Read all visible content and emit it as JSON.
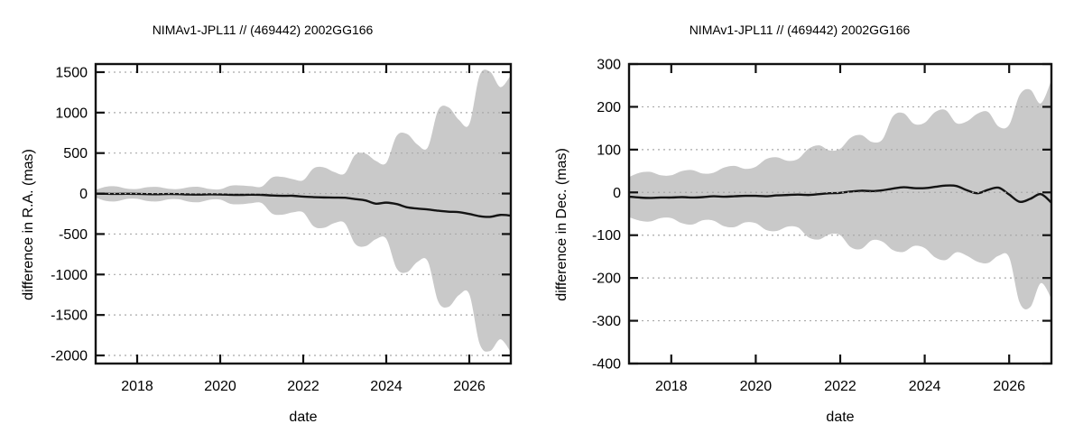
{
  "page": {
    "background_color": "#ffffff",
    "text_color": "#000000",
    "band_color": "#c9c9c9",
    "grid_color": "#a9a9a9",
    "frame_color": "#111111",
    "line_color": "#141414"
  },
  "chart_data": [
    {
      "type": "area",
      "title": "NIMAv1-JPL11 // (469442) 2002GG166",
      "xlabel": "date",
      "ylabel": "difference in R.A. (mas)",
      "x_range": [
        2017,
        2027
      ],
      "y_range": [
        -2100,
        1600
      ],
      "x_ticks": [
        2018,
        2020,
        2022,
        2024,
        2026
      ],
      "x_tick_labels": [
        "2018",
        "2020",
        "2022",
        "2024",
        "2026"
      ],
      "y_ticks": [
        -2000,
        -1500,
        -1000,
        -500,
        0,
        500,
        1000,
        1500
      ],
      "y_tick_labels": [
        "-2000",
        "-1500",
        "-1000",
        "-500",
        "0",
        "500",
        "1000",
        "1500"
      ],
      "grid": "horizontal-dotted",
      "legend": "none",
      "x": [
        2017.0,
        2017.25,
        2017.5,
        2017.75,
        2018.0,
        2018.25,
        2018.5,
        2018.75,
        2019.0,
        2019.25,
        2019.5,
        2019.75,
        2020.0,
        2020.25,
        2020.5,
        2020.75,
        2021.0,
        2021.25,
        2021.5,
        2021.75,
        2022.0,
        2022.25,
        2022.5,
        2022.75,
        2023.0,
        2023.25,
        2023.5,
        2023.75,
        2024.0,
        2024.25,
        2024.5,
        2024.75,
        2025.0,
        2025.25,
        2025.5,
        2025.75,
        2026.0,
        2026.25,
        2026.5,
        2026.75,
        2027.0
      ],
      "series": [
        {
          "name": "mean difference",
          "role": "line",
          "values": [
            -1,
            -3,
            -4,
            -3,
            -4,
            -7,
            -8,
            -6,
            -7,
            -11,
            -12,
            -10,
            -11,
            -15,
            -16,
            -14,
            -16,
            -24,
            -28,
            -27,
            -38,
            -44,
            -48,
            -50,
            -52,
            -68,
            -85,
            -125,
            -112,
            -130,
            -170,
            -185,
            -196,
            -212,
            -224,
            -230,
            -252,
            -280,
            -288,
            -264,
            -272
          ]
        },
        {
          "name": "uncertainty upper",
          "role": "band-upper",
          "values": [
            47,
            85,
            88,
            60,
            57,
            79,
            81,
            59,
            56,
            79,
            82,
            56,
            53,
            97,
            100,
            91,
            86,
            199,
            205,
            178,
            165,
            312,
            323,
            266,
            249,
            477,
            494,
            403,
            379,
            712,
            736,
            605,
            571,
            1029,
            1065,
            910,
            859,
            1460,
            1505,
            1315,
            1460
          ]
        },
        {
          "name": "uncertainty lower",
          "role": "band-lower",
          "values": [
            -49,
            -91,
            -96,
            -66,
            -65,
            -93,
            -97,
            -71,
            -70,
            -101,
            -106,
            -76,
            -75,
            -127,
            -132,
            -119,
            -118,
            -247,
            -261,
            -232,
            -233,
            -404,
            -423,
            -364,
            -365,
            -621,
            -650,
            -563,
            -559,
            -924,
            -972,
            -845,
            -837,
            -1333,
            -1399,
            -1254,
            -1243,
            -1857,
            -1945,
            -1800,
            -1960
          ]
        }
      ]
    },
    {
      "type": "area",
      "title": "NIMAv1-JPL11 // (469442) 2002GG166",
      "xlabel": "date",
      "ylabel": "difference in Dec. (mas)",
      "x_range": [
        2017,
        2027
      ],
      "y_range": [
        -400,
        300
      ],
      "x_ticks": [
        2018,
        2020,
        2022,
        2024,
        2026
      ],
      "x_tick_labels": [
        "2018",
        "2020",
        "2022",
        "2024",
        "2026"
      ],
      "y_ticks": [
        -400,
        -300,
        -200,
        -100,
        0,
        100,
        200,
        300
      ],
      "y_tick_labels": [
        "-400",
        "-300",
        "-200",
        "-100",
        "0",
        "100",
        "200",
        "300"
      ],
      "grid": "horizontal-dotted",
      "legend": "none",
      "x": [
        2017.0,
        2017.25,
        2017.5,
        2017.75,
        2018.0,
        2018.25,
        2018.5,
        2018.75,
        2019.0,
        2019.25,
        2019.5,
        2019.75,
        2020.0,
        2020.25,
        2020.5,
        2020.75,
        2021.0,
        2021.25,
        2021.5,
        2021.75,
        2022.0,
        2022.25,
        2022.5,
        2022.75,
        2023.0,
        2023.25,
        2023.5,
        2023.75,
        2024.0,
        2024.25,
        2024.5,
        2024.75,
        2025.0,
        2025.25,
        2025.5,
        2025.75,
        2026.0,
        2026.25,
        2026.5,
        2026.75,
        2027.0
      ],
      "series": [
        {
          "name": "mean difference",
          "role": "line",
          "values": [
            -10,
            -12,
            -13,
            -12,
            -12,
            -11,
            -12,
            -11,
            -9,
            -10,
            -9,
            -8,
            -8,
            -9,
            -7,
            -6,
            -5,
            -6,
            -4,
            -2,
            -1,
            2,
            4,
            3,
            5,
            9,
            12,
            10,
            10,
            13,
            16,
            15,
            5,
            -2,
            6,
            11,
            -5,
            -22,
            -15,
            -4,
            -24
          ]
        },
        {
          "name": "uncertainty upper",
          "role": "band-upper",
          "values": [
            36,
            46,
            48,
            40,
            40,
            50,
            52,
            44,
            46,
            58,
            62,
            55,
            60,
            78,
            82,
            74,
            78,
            102,
            110,
            98,
            102,
            128,
            134,
            118,
            124,
            178,
            185,
            160,
            163,
            188,
            192,
            162,
            166,
            184,
            188,
            154,
            158,
            228,
            240,
            208,
            262
          ]
        },
        {
          "name": "uncertainty lower",
          "role": "band-lower",
          "values": [
            -58,
            -66,
            -68,
            -60,
            -60,
            -72,
            -75,
            -65,
            -66,
            -79,
            -81,
            -70,
            -72,
            -88,
            -90,
            -80,
            -82,
            -105,
            -110,
            -98,
            -100,
            -128,
            -132,
            -112,
            -115,
            -135,
            -139,
            -125,
            -130,
            -152,
            -158,
            -140,
            -148,
            -162,
            -165,
            -148,
            -152,
            -258,
            -268,
            -212,
            -248
          ]
        }
      ]
    }
  ]
}
